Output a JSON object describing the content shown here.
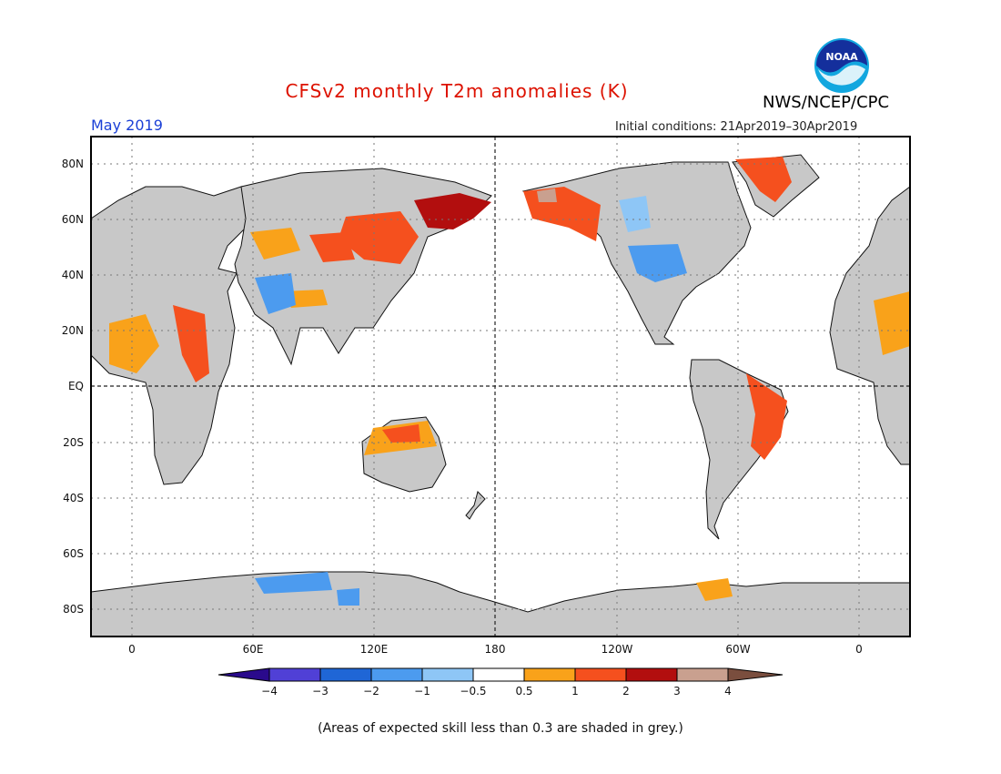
{
  "header": {
    "title": "CFSv2 monthly T2m anomalies (K)",
    "agency": "NWS/NCEP/CPC",
    "logo_text": "NOAA",
    "month": "May 2019",
    "initial_conditions": "Initial conditions: 21Apr2019–30Apr2019"
  },
  "map": {
    "lat_labels": [
      "80N",
      "60N",
      "40N",
      "20N",
      "EQ",
      "20S",
      "40S",
      "60S",
      "80S"
    ],
    "lon_labels": [
      "0",
      "60E",
      "120E",
      "180",
      "120W",
      "60W",
      "0"
    ],
    "land_color": "#c8c8c8",
    "reference_lines": [
      "EQ",
      "180"
    ]
  },
  "legend": {
    "tick_labels": [
      "−4",
      "−3",
      "−2",
      "−1",
      "−0.5",
      "0.5",
      "1",
      "2",
      "3",
      "4"
    ],
    "colors": [
      "#2a0a8c",
      "#5040d6",
      "#1f66d6",
      "#4c9bef",
      "#8ec6f6",
      "#ffffff",
      "#f9a21a",
      "#f5501e",
      "#b20e0e",
      "#c9a08f",
      "#7a4e3e"
    ]
  },
  "footnote": "(Areas of expected skill less than 0.3 are shaded in grey.)"
}
